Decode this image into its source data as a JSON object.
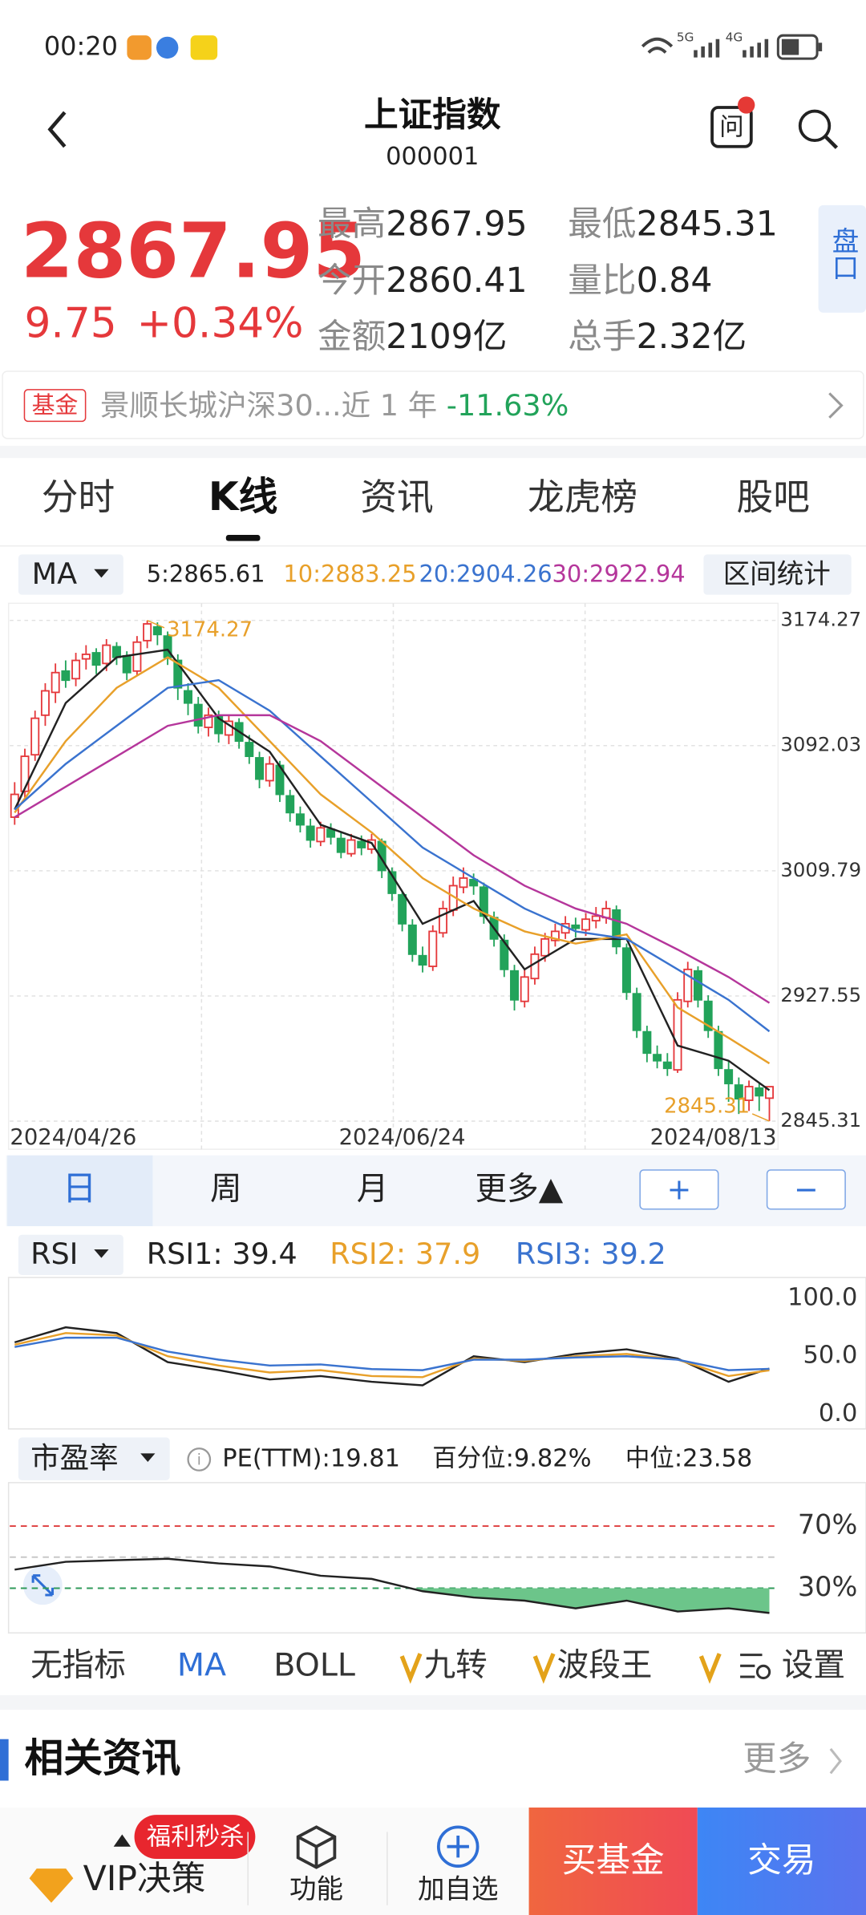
{
  "status_bar": {
    "time": "00:20",
    "net1": "5G",
    "net2": "4G"
  },
  "header": {
    "title": "上证指数",
    "code": "000001"
  },
  "quote": {
    "price": "2867.95",
    "change": "9.75",
    "change_pct": "+0.34%",
    "stats": [
      {
        "label": "最高",
        "value": "2867.95"
      },
      {
        "label": "最低",
        "value": "2845.31"
      },
      {
        "label": "今开",
        "value": "2860.41"
      },
      {
        "label": "量比",
        "value": "0.84"
      },
      {
        "label": "金额",
        "value": "2109亿"
      },
      {
        "label": "总手",
        "value": "2.32亿"
      }
    ],
    "panel_button": "盘口"
  },
  "fund_banner": {
    "tag": "基金",
    "name": "景顺长城沪深30...近 1 年 ",
    "return": "-11.63%"
  },
  "tabs": [
    "分时",
    "K线",
    "资讯",
    "龙虎榜",
    "股吧"
  ],
  "periods": [
    "日",
    "周",
    "月",
    "更多▲"
  ],
  "zoom_buttons": [
    "+",
    "−"
  ],
  "indicators": [
    "无指标",
    "MA",
    "BOLL",
    "九转",
    "波段王",
    "设置"
  ],
  "news": {
    "title": "相关资讯",
    "more": "更多"
  },
  "bottom_bar": {
    "badge": "福利秒杀",
    "vip": "VIP决策",
    "function": "功能",
    "add": "加自选",
    "buy_fund": "买基金",
    "trade": "交易"
  },
  "chart_data": [
    {
      "type": "candlestick",
      "indicator": "MA",
      "range_button": "区间统计",
      "up_color": "#e5383b",
      "down_color": "#22a35a",
      "extreme_color": "#e8a02a",
      "grid": true,
      "ylim": [
        2827.65,
        3184.7
      ],
      "yticks": [
        3174.27,
        3092.03,
        3009.79,
        2927.55,
        2845.31
      ],
      "xticks": [
        {
          "value": 0,
          "label": "2024/04/26"
        },
        {
          "value": 38,
          "label": "2024/06/24"
        },
        {
          "value": 72,
          "label": "2024/08/13"
        }
      ],
      "candles": [
        [
          3045,
          3060,
          3068,
          3040
        ],
        [
          3062,
          3085,
          3090,
          3058
        ],
        [
          3086,
          3110,
          3115,
          3082
        ],
        [
          3112,
          3128,
          3133,
          3105
        ],
        [
          3127,
          3140,
          3146,
          3120
        ],
        [
          3141,
          3135,
          3148,
          3130
        ],
        [
          3136,
          3148,
          3153,
          3131
        ],
        [
          3149,
          3152,
          3158,
          3142
        ],
        [
          3153,
          3145,
          3156,
          3139
        ],
        [
          3146,
          3158,
          3162,
          3141
        ],
        [
          3157,
          3150,
          3160,
          3145
        ],
        [
          3151,
          3140,
          3154,
          3135
        ],
        [
          3141,
          3160,
          3164,
          3138
        ],
        [
          3161,
          3172,
          3174.27,
          3156
        ],
        [
          3170,
          3165,
          3173,
          3158
        ],
        [
          3164,
          3150,
          3167,
          3145
        ],
        [
          3148,
          3130,
          3152,
          3122
        ],
        [
          3128,
          3120,
          3133,
          3112
        ],
        [
          3119,
          3105,
          3124,
          3100
        ],
        [
          3104,
          3112,
          3117,
          3098
        ],
        [
          3111,
          3100,
          3115,
          3094
        ],
        [
          3099,
          3108,
          3112,
          3093
        ],
        [
          3107,
          3095,
          3110,
          3090
        ],
        [
          3094,
          3085,
          3099,
          3080
        ],
        [
          3084,
          3070,
          3088,
          3064
        ],
        [
          3069,
          3080,
          3085,
          3065
        ],
        [
          3079,
          3060,
          3082,
          3055
        ],
        [
          3059,
          3048,
          3063,
          3042
        ],
        [
          3047,
          3040,
          3052,
          3035
        ],
        [
          3039,
          3030,
          3044,
          3025
        ],
        [
          3029,
          3038,
          3042,
          3026
        ],
        [
          3037,
          3032,
          3041,
          3027
        ],
        [
          3031,
          3022,
          3035,
          3018
        ],
        [
          3021,
          3030,
          3034,
          3019
        ],
        [
          3029,
          3025,
          3033,
          3020
        ],
        [
          3024,
          3030,
          3034,
          3021
        ],
        [
          3029,
          3010,
          3031,
          3005
        ],
        [
          3009,
          2995,
          3012,
          2990
        ],
        [
          2994,
          2975,
          2996,
          2970
        ],
        [
          2974,
          2955,
          2978,
          2950
        ],
        [
          2954,
          2948,
          2960,
          2943
        ],
        [
          2947,
          2970,
          2974,
          2944
        ],
        [
          2969,
          2985,
          2990,
          2966
        ],
        [
          2984,
          3000,
          3006,
          2980
        ],
        [
          2999,
          3005,
          3012,
          2995
        ],
        [
          3004,
          3000,
          3008,
          2994
        ],
        [
          2999,
          2980,
          3002,
          2975
        ],
        [
          2979,
          2965,
          2983,
          2960
        ],
        [
          2964,
          2945,
          2968,
          2940
        ],
        [
          2944,
          2925,
          2948,
          2918
        ],
        [
          2924,
          2940,
          2945,
          2920
        ],
        [
          2939,
          2955,
          2960,
          2935
        ],
        [
          2954,
          2965,
          2969,
          2950
        ],
        [
          2964,
          2970,
          2975,
          2960
        ],
        [
          2969,
          2975,
          2980,
          2965
        ],
        [
          2974,
          2972,
          2979,
          2966
        ],
        [
          2971,
          2978,
          2982,
          2967
        ],
        [
          2977,
          2980,
          2986,
          2972
        ],
        [
          2979,
          2985,
          2990,
          2975
        ],
        [
          2984,
          2960,
          2987,
          2955
        ],
        [
          2959,
          2930,
          2962,
          2925
        ],
        [
          2929,
          2905,
          2933,
          2900
        ],
        [
          2904,
          2890,
          2908,
          2884
        ],
        [
          2889,
          2885,
          2895,
          2880
        ],
        [
          2884,
          2880,
          2890,
          2875
        ],
        [
          2879,
          2925,
          2930,
          2877
        ],
        [
          2924,
          2945,
          2950,
          2920
        ],
        [
          2944,
          2925,
          2947,
          2920
        ],
        [
          2924,
          2905,
          2928,
          2900
        ],
        [
          2904,
          2880,
          2908,
          2875
        ],
        [
          2879,
          2870,
          2885,
          2858
        ],
        [
          2869,
          2860,
          2874,
          2850
        ],
        [
          2859,
          2868,
          2872,
          2852
        ],
        [
          2867,
          2862,
          2870,
          2852
        ],
        [
          2860.41,
          2867.95,
          2867.95,
          2845.31
        ]
      ],
      "x": [
        0,
        5,
        10,
        15,
        20,
        25,
        30,
        35,
        40,
        45,
        50,
        55,
        60,
        65,
        70,
        74
      ],
      "series": [
        {
          "name": "5:2865.61",
          "color": "#222222",
          "values": [
            3050,
            3120,
            3150,
            3155,
            3110,
            3088,
            3040,
            3028,
            2975,
            2990,
            2945,
            2965,
            2965,
            2895,
            2885,
            2865.61
          ]
        },
        {
          "name": "10:2883.25",
          "color": "#e8a02a",
          "values": [
            3048,
            3095,
            3130,
            3150,
            3130,
            3095,
            3060,
            3035,
            3005,
            2985,
            2970,
            2962,
            2968,
            2920,
            2900,
            2883.25
          ]
        },
        {
          "name": "20:2904.26",
          "color": "#3a73cf",
          "values": [
            3050,
            3080,
            3105,
            3130,
            3135,
            3115,
            3085,
            3055,
            3025,
            3005,
            2985,
            2970,
            2965,
            2945,
            2925,
            2904.26
          ]
        },
        {
          "name": "30:2922.94",
          "color": "#b5369b",
          "values": [
            3045,
            3065,
            3085,
            3105,
            3112,
            3112,
            3095,
            3070,
            3045,
            3020,
            3000,
            2985,
            2975,
            2958,
            2940,
            2922.94
          ]
        }
      ]
    },
    {
      "type": "line",
      "indicator": "RSI",
      "grid": false,
      "ylim": [
        0,
        100
      ],
      "yticks": [
        {
          "value": 100,
          "label": "100.0"
        },
        {
          "value": 50,
          "label": "50.0"
        },
        {
          "value": 0,
          "label": "0.0"
        }
      ],
      "x": [
        0,
        5,
        10,
        15,
        20,
        25,
        30,
        35,
        40,
        45,
        50,
        55,
        60,
        65,
        70,
        74
      ],
      "series": [
        {
          "name": "RSI1: 39.4",
          "color": "#222222",
          "values": [
            62,
            75,
            70,
            45,
            38,
            30,
            33,
            28,
            25,
            50,
            45,
            52,
            56,
            48,
            28,
            39.4
          ]
        },
        {
          "name": "RSI2: 37.9",
          "color": "#e8a02a",
          "values": [
            60,
            70,
            68,
            50,
            42,
            36,
            38,
            33,
            32,
            48,
            46,
            50,
            52,
            47,
            33,
            37.9
          ]
        },
        {
          "name": "RSI3: 39.2",
          "color": "#3a73cf",
          "values": [
            58,
            66,
            66,
            54,
            47,
            42,
            43,
            39,
            38,
            47,
            47,
            49,
            50,
            47,
            38,
            39.2
          ]
        }
      ]
    },
    {
      "type": "area",
      "indicator": "市盈率",
      "info": "PE(TTM):19.81",
      "percentile": "百分位:9.82%",
      "median": "中位:23.58",
      "ylim": [
        1.2,
        97.2
      ],
      "yticks": [
        {
          "value": 70,
          "label": "70%"
        },
        {
          "value": 50,
          "label": null
        },
        {
          "value": 30,
          "label": "30%"
        }
      ],
      "guide_colors": [
        "#e04848",
        "#c8c8c8",
        "#2f9a5a"
      ],
      "fill_below": 30,
      "color": "#222222",
      "fill": "#6cc58a",
      "x": [
        0,
        5,
        10,
        15,
        20,
        25,
        30,
        35,
        40,
        45,
        50,
        55,
        60,
        65,
        70,
        74
      ],
      "values": [
        42,
        47,
        48,
        49,
        46,
        44,
        38,
        36,
        28,
        24,
        22,
        17,
        22,
        15,
        17,
        14
      ]
    }
  ]
}
